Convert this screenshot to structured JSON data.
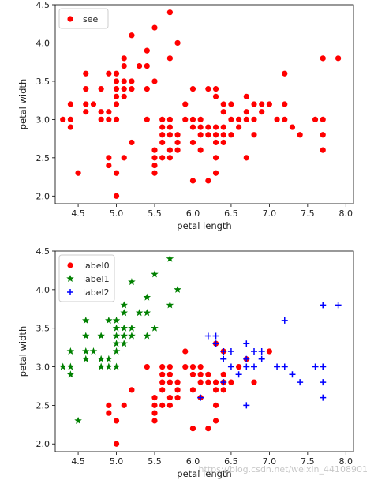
{
  "watermark": "https://blog.csdn.net/weixin_44108901",
  "chart_data": [
    {
      "type": "scatter",
      "xlabel": "petal length",
      "ylabel": "petal width",
      "xlim": [
        4.2,
        8.1
      ],
      "ylim": [
        1.9,
        4.5
      ],
      "xticks": [
        4.5,
        5.0,
        5.5,
        6.0,
        6.5,
        7.0,
        7.5,
        8.0
      ],
      "xtick_labels": [
        "4.5",
        "5.0",
        "5.5",
        "6.0",
        "6.5",
        "7.0",
        "7.5",
        "8.0"
      ],
      "yticks": [
        2.0,
        2.5,
        3.0,
        3.5,
        4.0,
        4.5
      ],
      "ytick_labels": [
        "2.0",
        "2.5",
        "3.0",
        "3.5",
        "4.0",
        "4.5"
      ],
      "legend_position": "upper-left",
      "series": [
        {
          "name": "see",
          "marker": "circle",
          "color": "#ff0000",
          "points": [
            [
              4.3,
              3.0
            ],
            [
              4.4,
              2.9
            ],
            [
              4.4,
              3.0
            ],
            [
              4.4,
              3.2
            ],
            [
              4.5,
              2.3
            ],
            [
              4.6,
              3.1
            ],
            [
              4.6,
              3.2
            ],
            [
              4.6,
              3.4
            ],
            [
              4.6,
              3.6
            ],
            [
              4.7,
              3.2
            ],
            [
              4.8,
              3.0
            ],
            [
              4.8,
              3.1
            ],
            [
              4.8,
              3.4
            ],
            [
              4.9,
              3.0
            ],
            [
              4.9,
              3.1
            ],
            [
              4.9,
              3.6
            ],
            [
              4.9,
              2.5
            ],
            [
              4.9,
              2.4
            ],
            [
              5.0,
              3.0
            ],
            [
              5.0,
              3.2
            ],
            [
              5.0,
              3.3
            ],
            [
              5.0,
              3.4
            ],
            [
              5.0,
              3.5
            ],
            [
              5.0,
              3.6
            ],
            [
              5.0,
              2.3
            ],
            [
              5.0,
              2.0
            ],
            [
              5.1,
              3.3
            ],
            [
              5.1,
              3.4
            ],
            [
              5.1,
              3.5
            ],
            [
              5.1,
              3.7
            ],
            [
              5.1,
              3.8
            ],
            [
              5.1,
              2.5
            ],
            [
              5.2,
              2.7
            ],
            [
              5.2,
              3.4
            ],
            [
              5.2,
              3.5
            ],
            [
              5.2,
              4.1
            ],
            [
              5.3,
              3.7
            ],
            [
              5.4,
              3.0
            ],
            [
              5.4,
              3.4
            ],
            [
              5.4,
              3.7
            ],
            [
              5.4,
              3.9
            ],
            [
              5.5,
              2.3
            ],
            [
              5.5,
              2.4
            ],
            [
              5.5,
              2.5
            ],
            [
              5.5,
              2.6
            ],
            [
              5.5,
              3.5
            ],
            [
              5.5,
              4.2
            ],
            [
              5.6,
              2.5
            ],
            [
              5.6,
              2.7
            ],
            [
              5.6,
              2.8
            ],
            [
              5.6,
              2.9
            ],
            [
              5.6,
              3.0
            ],
            [
              5.7,
              2.5
            ],
            [
              5.7,
              2.6
            ],
            [
              5.7,
              2.8
            ],
            [
              5.7,
              2.9
            ],
            [
              5.7,
              3.0
            ],
            [
              5.7,
              3.8
            ],
            [
              5.7,
              4.4
            ],
            [
              5.8,
              2.6
            ],
            [
              5.8,
              2.7
            ],
            [
              5.8,
              2.8
            ],
            [
              5.8,
              4.0
            ],
            [
              5.9,
              3.0
            ],
            [
              5.9,
              3.2
            ],
            [
              6.0,
              2.2
            ],
            [
              6.0,
              2.7
            ],
            [
              6.0,
              2.9
            ],
            [
              6.0,
              3.0
            ],
            [
              6.0,
              3.4
            ],
            [
              6.1,
              2.6
            ],
            [
              6.1,
              2.8
            ],
            [
              6.1,
              2.9
            ],
            [
              6.1,
              3.0
            ],
            [
              6.2,
              2.2
            ],
            [
              6.2,
              2.8
            ],
            [
              6.2,
              2.9
            ],
            [
              6.2,
              3.4
            ],
            [
              6.3,
              2.3
            ],
            [
              6.3,
              2.5
            ],
            [
              6.3,
              2.7
            ],
            [
              6.3,
              2.8
            ],
            [
              6.3,
              2.9
            ],
            [
              6.3,
              3.3
            ],
            [
              6.3,
              3.4
            ],
            [
              6.4,
              2.7
            ],
            [
              6.4,
              2.8
            ],
            [
              6.4,
              2.9
            ],
            [
              6.4,
              3.1
            ],
            [
              6.4,
              3.2
            ],
            [
              6.5,
              2.8
            ],
            [
              6.5,
              3.0
            ],
            [
              6.5,
              3.2
            ],
            [
              6.6,
              2.9
            ],
            [
              6.6,
              3.0
            ],
            [
              6.7,
              2.5
            ],
            [
              6.7,
              3.0
            ],
            [
              6.7,
              3.1
            ],
            [
              6.7,
              3.3
            ],
            [
              6.8,
              2.8
            ],
            [
              6.8,
              3.0
            ],
            [
              6.8,
              3.2
            ],
            [
              6.9,
              3.1
            ],
            [
              6.9,
              3.2
            ],
            [
              7.0,
              3.2
            ],
            [
              7.1,
              3.0
            ],
            [
              7.2,
              3.0
            ],
            [
              7.2,
              3.2
            ],
            [
              7.2,
              3.6
            ],
            [
              7.3,
              2.9
            ],
            [
              7.4,
              2.8
            ],
            [
              7.6,
              3.0
            ],
            [
              7.7,
              2.6
            ],
            [
              7.7,
              2.8
            ],
            [
              7.7,
              3.0
            ],
            [
              7.7,
              3.8
            ],
            [
              7.9,
              3.8
            ]
          ]
        }
      ]
    },
    {
      "type": "scatter",
      "xlabel": "petal length",
      "ylabel": "petal width",
      "xlim": [
        4.2,
        8.1
      ],
      "ylim": [
        1.9,
        4.5
      ],
      "xticks": [
        4.5,
        5.0,
        5.5,
        6.0,
        6.5,
        7.0,
        7.5,
        8.0
      ],
      "xtick_labels": [
        "4.5",
        "5.0",
        "5.5",
        "6.0",
        "6.5",
        "7.0",
        "7.5",
        "8.0"
      ],
      "yticks": [
        2.0,
        2.5,
        3.0,
        3.5,
        4.0,
        4.5
      ],
      "ytick_labels": [
        "2.0",
        "2.5",
        "3.0",
        "3.5",
        "4.0",
        "4.5"
      ],
      "legend_position": "upper-left",
      "series": [
        {
          "name": "label0",
          "marker": "circle",
          "color": "#ff0000",
          "points": [
            [
              4.9,
              2.5
            ],
            [
              4.9,
              2.4
            ],
            [
              5.0,
              2.3
            ],
            [
              5.0,
              2.0
            ],
            [
              5.1,
              2.5
            ],
            [
              5.2,
              2.7
            ],
            [
              5.4,
              3.0
            ],
            [
              5.5,
              2.3
            ],
            [
              5.5,
              2.4
            ],
            [
              5.5,
              2.5
            ],
            [
              5.5,
              2.6
            ],
            [
              5.6,
              2.5
            ],
            [
              5.6,
              2.7
            ],
            [
              5.6,
              2.8
            ],
            [
              5.6,
              2.9
            ],
            [
              5.6,
              3.0
            ],
            [
              5.7,
              2.5
            ],
            [
              5.7,
              2.6
            ],
            [
              5.7,
              2.8
            ],
            [
              5.7,
              2.9
            ],
            [
              5.7,
              3.0
            ],
            [
              5.8,
              2.6
            ],
            [
              5.8,
              2.7
            ],
            [
              5.8,
              2.8
            ],
            [
              5.9,
              3.0
            ],
            [
              5.9,
              3.2
            ],
            [
              6.0,
              2.2
            ],
            [
              6.0,
              2.7
            ],
            [
              6.0,
              2.9
            ],
            [
              6.0,
              3.0
            ],
            [
              6.1,
              2.6
            ],
            [
              6.1,
              2.8
            ],
            [
              6.1,
              2.9
            ],
            [
              6.1,
              3.0
            ],
            [
              6.2,
              2.2
            ],
            [
              6.2,
              2.8
            ],
            [
              6.2,
              2.9
            ],
            [
              6.3,
              2.3
            ],
            [
              6.3,
              2.5
            ],
            [
              6.3,
              2.7
            ],
            [
              6.3,
              2.8
            ],
            [
              6.3,
              3.3
            ],
            [
              6.4,
              2.7
            ],
            [
              6.4,
              2.8
            ],
            [
              6.4,
              2.9
            ],
            [
              6.4,
              3.2
            ],
            [
              6.5,
              2.8
            ],
            [
              6.6,
              3.0
            ],
            [
              6.7,
              3.1
            ],
            [
              6.8,
              2.8
            ],
            [
              7.0,
              3.2
            ]
          ]
        },
        {
          "name": "label1",
          "marker": "star",
          "color": "#008000",
          "points": [
            [
              4.3,
              3.0
            ],
            [
              4.4,
              2.9
            ],
            [
              4.4,
              3.0
            ],
            [
              4.4,
              3.2
            ],
            [
              4.5,
              2.3
            ],
            [
              4.6,
              3.1
            ],
            [
              4.6,
              3.2
            ],
            [
              4.6,
              3.4
            ],
            [
              4.6,
              3.6
            ],
            [
              4.7,
              3.2
            ],
            [
              4.8,
              3.0
            ],
            [
              4.8,
              3.1
            ],
            [
              4.8,
              3.4
            ],
            [
              4.9,
              3.0
            ],
            [
              4.9,
              3.1
            ],
            [
              4.9,
              3.6
            ],
            [
              5.0,
              3.0
            ],
            [
              5.0,
              3.2
            ],
            [
              5.0,
              3.3
            ],
            [
              5.0,
              3.4
            ],
            [
              5.0,
              3.5
            ],
            [
              5.0,
              3.6
            ],
            [
              5.1,
              3.3
            ],
            [
              5.1,
              3.4
            ],
            [
              5.1,
              3.5
            ],
            [
              5.1,
              3.7
            ],
            [
              5.1,
              3.8
            ],
            [
              5.2,
              3.4
            ],
            [
              5.2,
              3.5
            ],
            [
              5.2,
              4.1
            ],
            [
              5.3,
              3.7
            ],
            [
              5.4,
              3.4
            ],
            [
              5.4,
              3.7
            ],
            [
              5.4,
              3.9
            ],
            [
              5.5,
              3.5
            ],
            [
              5.5,
              4.2
            ],
            [
              5.7,
              3.8
            ],
            [
              5.7,
              4.4
            ],
            [
              5.8,
              4.0
            ]
          ]
        },
        {
          "name": "label2",
          "marker": "plus",
          "color": "#0000ff",
          "points": [
            [
              6.1,
              2.6
            ],
            [
              6.2,
              3.4
            ],
            [
              6.3,
              3.3
            ],
            [
              6.3,
              3.4
            ],
            [
              6.4,
              2.8
            ],
            [
              6.4,
              3.1
            ],
            [
              6.4,
              3.2
            ],
            [
              6.5,
              3.0
            ],
            [
              6.5,
              3.2
            ],
            [
              6.6,
              2.9
            ],
            [
              6.7,
              2.5
            ],
            [
              6.7,
              3.0
            ],
            [
              6.7,
              3.1
            ],
            [
              6.7,
              3.3
            ],
            [
              6.8,
              3.0
            ],
            [
              6.8,
              3.2
            ],
            [
              6.9,
              3.1
            ],
            [
              6.9,
              3.2
            ],
            [
              7.1,
              3.0
            ],
            [
              7.2,
              3.0
            ],
            [
              7.2,
              3.6
            ],
            [
              7.3,
              2.9
            ],
            [
              7.4,
              2.8
            ],
            [
              7.6,
              3.0
            ],
            [
              7.7,
              2.6
            ],
            [
              7.7,
              2.8
            ],
            [
              7.7,
              3.0
            ],
            [
              7.7,
              3.8
            ],
            [
              7.9,
              3.8
            ]
          ]
        }
      ]
    }
  ]
}
